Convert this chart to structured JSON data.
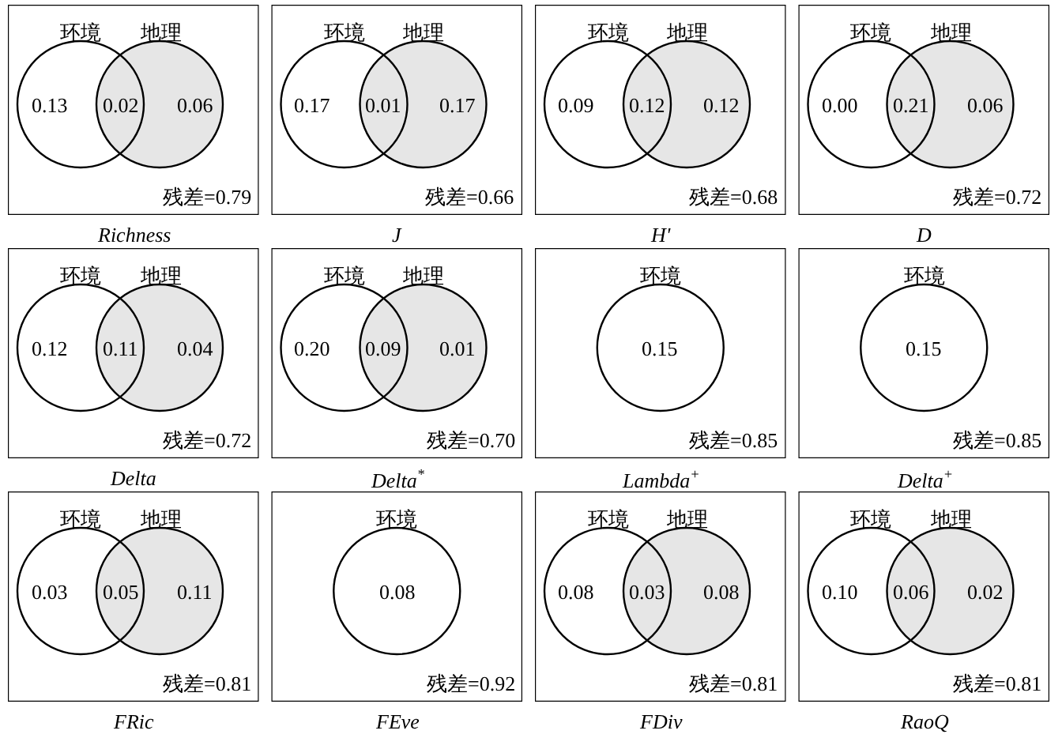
{
  "chart_data": [
    {
      "type": "other",
      "title": "Richness",
      "categories": [
        "环境",
        null,
        "地理"
      ],
      "values": [
        0.13,
        0.02,
        0.06
      ],
      "value_labels": [
        "0.13",
        "0.02",
        "0.06"
      ],
      "colors": [
        "#ffffff",
        "#e6e6e6",
        "#e6e6e6"
      ],
      "annotations": [
        "残差=0.79"
      ]
    },
    {
      "type": "other",
      "title": "J",
      "categories": [
        "环境",
        null,
        "地理"
      ],
      "values": [
        0.17,
        0.01,
        0.17
      ],
      "value_labels": [
        "0.17",
        "0.01",
        "0.17"
      ],
      "colors": [
        "#ffffff",
        "#e6e6e6",
        "#e6e6e6"
      ],
      "annotations": [
        "残差=0.66"
      ]
    },
    {
      "type": "other",
      "title": "H'",
      "categories": [
        "环境",
        null,
        "地理"
      ],
      "values": [
        0.09,
        0.12,
        0.12
      ],
      "value_labels": [
        "0.09",
        "0.12",
        "0.12"
      ],
      "colors": [
        "#ffffff",
        "#e6e6e6",
        "#e6e6e6"
      ],
      "annotations": [
        "残差=0.68"
      ]
    },
    {
      "type": "other",
      "title": "D",
      "categories": [
        "环境",
        null,
        "地理"
      ],
      "values": [
        0.0,
        0.21,
        0.06
      ],
      "value_labels": [
        "0.00",
        "0.21",
        "0.06"
      ],
      "colors": [
        "#ffffff",
        "#e6e6e6",
        "#e6e6e6"
      ],
      "annotations": [
        "残差=0.72"
      ]
    },
    {
      "type": "other",
      "title": "Delta",
      "categories": [
        "环境",
        null,
        "地理"
      ],
      "values": [
        0.12,
        0.11,
        0.04
      ],
      "value_labels": [
        "0.12",
        "0.11",
        "0.04"
      ],
      "colors": [
        "#ffffff",
        "#e6e6e6",
        "#e6e6e6"
      ],
      "annotations": [
        "残差=0.72"
      ]
    },
    {
      "type": "other",
      "title": "Delta$^{*}$",
      "categories": [
        "环境",
        null,
        "地理"
      ],
      "values": [
        0.2,
        0.09,
        0.01
      ],
      "value_labels": [
        "0.20",
        "0.09",
        "0.01"
      ],
      "colors": [
        "#ffffff",
        "#e6e6e6",
        "#e6e6e6"
      ],
      "annotations": [
        "残差=0.70"
      ]
    },
    {
      "type": "other",
      "title": "Lambda$^{+}$",
      "categories": [
        "环境"
      ],
      "values": [
        0.15
      ],
      "value_labels": [
        "0.15"
      ],
      "colors": [
        "#ffffff"
      ],
      "annotations": [
        "残差=0.85"
      ]
    },
    {
      "type": "other",
      "title": "Delta$^{+}$",
      "categories": [
        "环境"
      ],
      "values": [
        0.15
      ],
      "value_labels": [
        "0.15"
      ],
      "colors": [
        "#ffffff"
      ],
      "annotations": [
        "残差=0.85"
      ]
    },
    {
      "type": "other",
      "title": "FRic",
      "categories": [
        "环境",
        null,
        "地理"
      ],
      "values": [
        0.03,
        0.05,
        0.11
      ],
      "value_labels": [
        "0.03",
        "0.05",
        "0.11"
      ],
      "colors": [
        "#ffffff",
        "#e6e6e6",
        "#e6e6e6"
      ],
      "annotations": [
        "残差=0.81"
      ]
    },
    {
      "type": "other",
      "title": "FEve",
      "categories": [
        "环境"
      ],
      "values": [
        0.08
      ],
      "value_labels": [
        "0.08"
      ],
      "colors": [
        "#ffffff"
      ],
      "annotations": [
        "残差=0.92"
      ]
    },
    {
      "type": "other",
      "title": "FDiv",
      "categories": [
        "环境",
        null,
        "地理"
      ],
      "values": [
        0.08,
        0.03,
        0.08
      ],
      "value_labels": [
        "0.08",
        "0.03",
        "0.08"
      ],
      "colors": [
        "#ffffff",
        "#e6e6e6",
        "#e6e6e6"
      ],
      "annotations": [
        "残差=0.81"
      ]
    },
    {
      "type": "other",
      "title": "RaoQ",
      "categories": [
        "环境",
        null,
        "地理"
      ],
      "values": [
        0.1,
        0.06,
        0.02
      ],
      "value_labels": [
        "0.10",
        "0.06",
        "0.02"
      ],
      "colors": [
        "#ffffff",
        "#e6e6e6",
        "#e6e6e6"
      ],
      "annotations": [
        "残差=0.81"
      ]
    }
  ]
}
